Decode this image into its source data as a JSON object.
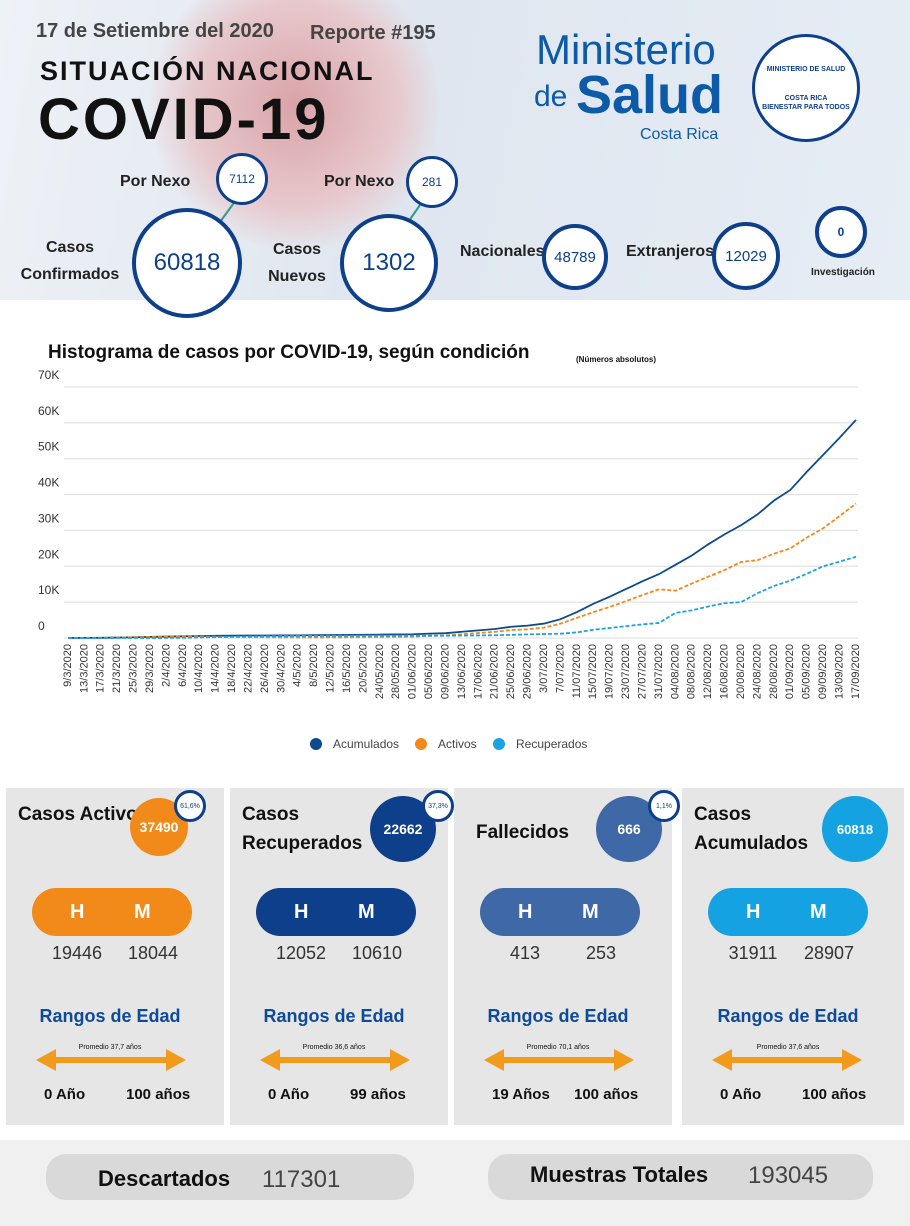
{
  "header": {
    "date": "17 de Setiembre del 2020",
    "report": "Reporte #195",
    "subtitle": "SITUACIÓN NACIONAL",
    "title": "COVID-19",
    "logo": {
      "line1": "Ministerio",
      "line2a": "de",
      "line2b": "Salud",
      "line3": "Costa Rica",
      "seal_top": "MINISTERIO DE SALUD",
      "seal_mid": "COSTA RICA",
      "seal_bottom": "BIENESTAR PARA TODOS"
    }
  },
  "stats": {
    "nexo1_label": "Por Nexo",
    "nexo1_value": 7112,
    "confirmed_label": "Casos Confirmados",
    "confirmed_value": 60818,
    "nexo2_label": "Por Nexo",
    "nexo2_value": 281,
    "new_label": "Casos Nuevos",
    "new_value": 1302,
    "national_label": "Nacionales",
    "national_value": 48789,
    "foreign_label": "Extranjeros",
    "foreign_value": 12029,
    "investigation_value": 0,
    "investigation_label": "Investigación"
  },
  "chart_data": {
    "type": "line",
    "title": "Histograma de casos por COVID-19, según condición",
    "subtitle": "(Números absolutos)",
    "categories": [
      "9/3/2020",
      "13/3/2020",
      "17/3/2020",
      "21/3/2020",
      "25/3/2020",
      "29/3/2020",
      "2/4/2020",
      "6/4/2020",
      "10/4/2020",
      "14/4/2020",
      "18/4/2020",
      "22/4/2020",
      "26/4/2020",
      "30/4/2020",
      "4/5/2020",
      "8/5/2020",
      "12/5/2020",
      "16/5/2020",
      "20/5/2020",
      "24/05/2020",
      "28/05/2020",
      "01/06/2020",
      "05/06/2020",
      "09/06/2020",
      "13/06/2020",
      "17/06/2020",
      "21/06/2020",
      "25/06/2020",
      "29/06/2020",
      "3/07/2020",
      "7/07/2020",
      "11/07/2020",
      "15/07/2020",
      "19/07/2020",
      "23/07/2020",
      "27/07/2020",
      "31/07/2020",
      "04/08/2020",
      "08/08/2020",
      "12/08/2020",
      "16/08/2020",
      "20/08/2020",
      "24/08/2020",
      "28/08/2020",
      "01/09/2020",
      "05/09/2020",
      "09/09/2020",
      "13/09/2020",
      "17/09/2020"
    ],
    "series": [
      {
        "name": "Acumulados",
        "color": "#0d4a8e",
        "dashed": false,
        "values": [
          9,
          27,
          50,
          117,
          201,
          314,
          396,
          467,
          558,
          612,
          655,
          687,
          697,
          719,
          739,
          792,
          830,
          866,
          911,
          951,
          1000,
          1047,
          1228,
          1342,
          1744,
          2127,
          2515,
          3130,
          3459,
          4023,
          5241,
          7231,
          9546,
          11534,
          13669,
          15841,
          17820,
          20417,
          22999,
          26129,
          28941,
          31436,
          34463,
          38311,
          41287,
          46316,
          51060,
          55841,
          60818
        ]
      },
      {
        "name": "Activos",
        "color": "#f28a1a",
        "dashed": true,
        "values": [
          9,
          27,
          50,
          115,
          196,
          300,
          365,
          400,
          410,
          360,
          300,
          250,
          200,
          160,
          140,
          150,
          170,
          200,
          240,
          290,
          340,
          390,
          560,
          680,
          1050,
          1380,
          1720,
          2230,
          2420,
          2900,
          4000,
          5620,
          7200,
          8670,
          10300,
          12000,
          13580,
          13200,
          15200,
          17100,
          18950,
          21200,
          21700,
          23500,
          25000,
          28000,
          30600,
          34000,
          37490
        ]
      },
      {
        "name": "Recuperados",
        "color": "#1aa3e0",
        "dashed": true,
        "values": [
          0,
          0,
          0,
          2,
          4,
          12,
          28,
          60,
          140,
          240,
          340,
          425,
          480,
          540,
          580,
          620,
          640,
          650,
          650,
          640,
          640,
          640,
          650,
          640,
          670,
          720,
          770,
          880,
          1010,
          1100,
          1200,
          1570,
          2300,
          2800,
          3300,
          3800,
          4200,
          7000,
          7700,
          8800,
          9700,
          10000,
          12500,
          14500,
          16000,
          17900,
          20000,
          21300,
          22662
        ]
      }
    ],
    "ylim": [
      0,
      70000
    ],
    "yticks": [
      0,
      {
        "value": 10000,
        "label": "10K"
      },
      {
        "value": 20000,
        "label": "20K"
      },
      {
        "value": 30000,
        "label": "30K"
      },
      {
        "value": 40000,
        "label": "40K"
      },
      {
        "value": 50000,
        "label": "50K"
      },
      {
        "value": 60000,
        "label": "60K"
      },
      {
        "value": 70000,
        "label": "70K"
      }
    ],
    "grid": true
  },
  "cards": [
    {
      "title": "Casos Activos",
      "value": 37490,
      "pct": "61,6%",
      "color": "#f28a1a",
      "h": "H",
      "m": "M",
      "h_value": 19446,
      "m_value": 18044,
      "age_title": "Rangos de Edad",
      "avg": "Promedio 37,7 años",
      "min": "0 Año",
      "max": "100 años"
    },
    {
      "title": "Casos Recuperados",
      "value": 22662,
      "pct": "37,3%",
      "color": "#0d3f8a",
      "h": "H",
      "m": "M",
      "h_value": 12052,
      "m_value": 10610,
      "age_title": "Rangos de Edad",
      "avg": "Promedio 36,6 años",
      "min": "0 Año",
      "max": "99 años"
    },
    {
      "title": "Fallecidos",
      "value": 666,
      "pct": "1,1%",
      "color": "#3f68a6",
      "h": "H",
      "m": "M",
      "h_value": 413,
      "m_value": 253,
      "age_title": "Rangos de Edad",
      "avg": "Promedio 70,1 años",
      "min": "19 Años",
      "max": "100 años"
    },
    {
      "title": "Casos Acumulados",
      "value": 60818,
      "color": "#14a2e2",
      "h": "H",
      "m": "M",
      "h_value": 31911,
      "m_value": 28907,
      "age_title": "Rangos de Edad",
      "avg": "Promedio 37,6 años",
      "min": "0 Año",
      "max": "100 años"
    }
  ],
  "footer": {
    "discarded_label": "Descartados",
    "discarded_value": 117301,
    "samples_label": "Muestras Totales",
    "samples_value": 193045
  }
}
